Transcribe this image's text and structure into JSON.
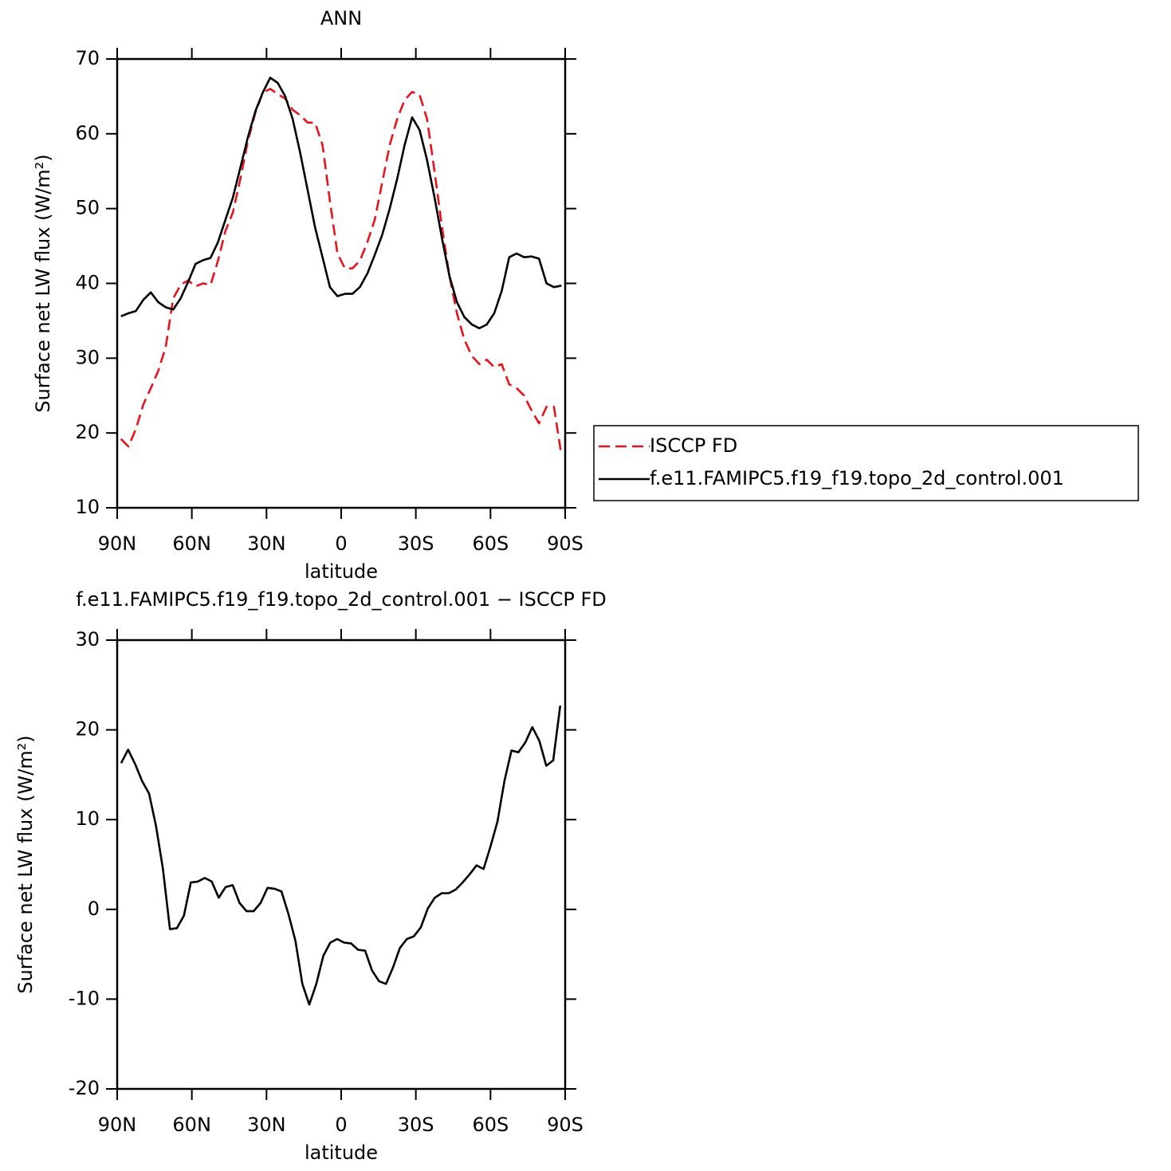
{
  "chart_data": [
    {
      "type": "line",
      "title": "ANN",
      "x_label": "latitude",
      "y_label": "Surface net LW flux (W/m²)",
      "x": [
        88.5,
        85.5,
        82.5,
        79.5,
        76.5,
        73.5,
        70.5,
        67.5,
        64.5,
        61.5,
        58.5,
        55.5,
        52.5,
        49.5,
        46.5,
        43.5,
        40.5,
        37.5,
        34.5,
        31.5,
        28.5,
        25.5,
        22.5,
        19.5,
        16.5,
        13.5,
        10.5,
        7.5,
        4.5,
        1.5,
        -1.5,
        -4.5,
        -7.5,
        -10.5,
        -13.5,
        -16.5,
        -19.5,
        -22.5,
        -25.5,
        -28.5,
        -31.5,
        -34.5,
        -37.5,
        -40.5,
        -43.5,
        -46.5,
        -49.5,
        -52.5,
        -55.5,
        -58.5,
        -61.5,
        -64.5,
        -67.5,
        -70.5,
        -73.5,
        -76.5,
        -79.5,
        -82.5,
        -85.5,
        -88.5
      ],
      "series": [
        {
          "name": "ISCCP FD",
          "color": "#e8141b",
          "line_style": "dashed",
          "values": [
            19.2,
            18.2,
            20.5,
            23.8,
            26,
            28.3,
            31.5,
            38,
            39.8,
            40.4,
            39.6,
            40,
            39.8,
            43,
            47,
            49.5,
            54,
            59,
            62.8,
            65.5,
            66,
            65.3,
            64.7,
            63.2,
            62.5,
            61.5,
            61.5,
            58.5,
            51,
            44,
            42,
            42,
            43,
            45.5,
            48.5,
            53.5,
            58.5,
            62,
            64.5,
            65.6,
            65.2,
            62,
            55,
            47.5,
            41,
            36,
            32.5,
            30.3,
            29.2,
            29.8,
            28.8,
            29.2,
            26.5,
            26,
            25,
            23,
            21.3,
            23.5,
            23.5,
            17
          ]
        },
        {
          "name": "f.e11.FAMIPC5.f19_f19.topo_2d_control.001",
          "color": "#000000",
          "line_style": "solid",
          "values": [
            35.6,
            36,
            36.3,
            37.8,
            38.8,
            37.5,
            36.8,
            36.5,
            38,
            40.2,
            42.6,
            43.1,
            43.4,
            45.5,
            48.5,
            51.5,
            55.5,
            59.5,
            63,
            65.5,
            67.5,
            66.8,
            65,
            62,
            57.5,
            52.5,
            47.5,
            43.5,
            39.5,
            38.3,
            38.6,
            38.6,
            39.5,
            41.3,
            43.8,
            46.5,
            50,
            54,
            58.5,
            62.2,
            60.5,
            56.5,
            51.5,
            46,
            41,
            37.5,
            35.5,
            34.5,
            34,
            34.5,
            36,
            39,
            43.5,
            44,
            43.5,
            43.6,
            43.3,
            40,
            39.5,
            39.7
          ]
        }
      ],
      "xlim": [
        90,
        -90
      ],
      "xticks": [
        {
          "value": 90,
          "label": "90N"
        },
        {
          "value": 60,
          "label": "60N"
        },
        {
          "value": 30,
          "label": "30N"
        },
        0,
        {
          "value": -30,
          "label": "30S"
        },
        {
          "value": -60,
          "label": "60S"
        },
        {
          "value": -90,
          "label": "90S"
        }
      ],
      "ylim": [
        10,
        70
      ],
      "yticks": [
        10,
        20,
        30,
        40,
        50,
        60,
        70
      ],
      "legend": "right"
    },
    {
      "type": "line",
      "title": "f.e11.FAMIPC5.f19_f19.topo_2d_control.001 − ISCCP FD",
      "x_label": "latitude",
      "y_label": "Surface net LW flux (W/m²)",
      "x": [
        88.4,
        85.6,
        82.8,
        80,
        77.2,
        74.4,
        71.6,
        68.8,
        66,
        63.2,
        60.4,
        57.6,
        54.8,
        52,
        49.2,
        46.4,
        43.6,
        40.8,
        38,
        35.2,
        32.4,
        29.6,
        26.8,
        24,
        21.2,
        18.4,
        15.6,
        12.8,
        10,
        7.2,
        4.4,
        1.6,
        -1.2,
        -4,
        -6.8,
        -9.6,
        -12.4,
        -15.2,
        -18,
        -20.8,
        -23.6,
        -26.4,
        -29.2,
        -32,
        -34.8,
        -37.6,
        -40.4,
        -43.2,
        -46,
        -48.8,
        -51.6,
        -54.4,
        -57.2,
        -60,
        -62.8,
        -65.6,
        -68.4,
        -71.2,
        -74,
        -76.8,
        -79.6,
        -82.4,
        -85.2,
        -88
      ],
      "values": [
        16.3,
        17.8,
        16.2,
        14.3,
        12.9,
        9.3,
        4.5,
        -2.2,
        -2.1,
        -0.7,
        3,
        3.1,
        3.5,
        3.1,
        1.3,
        2.5,
        2.7,
        0.7,
        -0.2,
        -0.2,
        0.7,
        2.4,
        2.3,
        2,
        -0.5,
        -3.5,
        -8.3,
        -10.6,
        -8.3,
        -5.2,
        -3.7,
        -3.3,
        -3.7,
        -3.8,
        -4.5,
        -4.6,
        -6.8,
        -8,
        -8.3,
        -6.5,
        -4.3,
        -3.3,
        -3,
        -2,
        0.1,
        1.3,
        1.8,
        1.8,
        2.2,
        3,
        3.9,
        4.9,
        4.5,
        7,
        9.8,
        14.3,
        17.7,
        17.5,
        18.6,
        20.3,
        18.8,
        16,
        16.6,
        22.7
      ],
      "color": "#000000",
      "line_style": "solid",
      "xlim": [
        90,
        -90
      ],
      "xticks": [
        {
          "value": 90,
          "label": "90N"
        },
        {
          "value": 60,
          "label": "60N"
        },
        {
          "value": 30,
          "label": "30N"
        },
        0,
        {
          "value": -30,
          "label": "30S"
        },
        {
          "value": -60,
          "label": "60S"
        },
        {
          "value": -90,
          "label": "90S"
        }
      ],
      "ylim": [
        -20,
        30
      ],
      "yticks": [
        -20,
        -10,
        0,
        10,
        20,
        30
      ]
    }
  ]
}
